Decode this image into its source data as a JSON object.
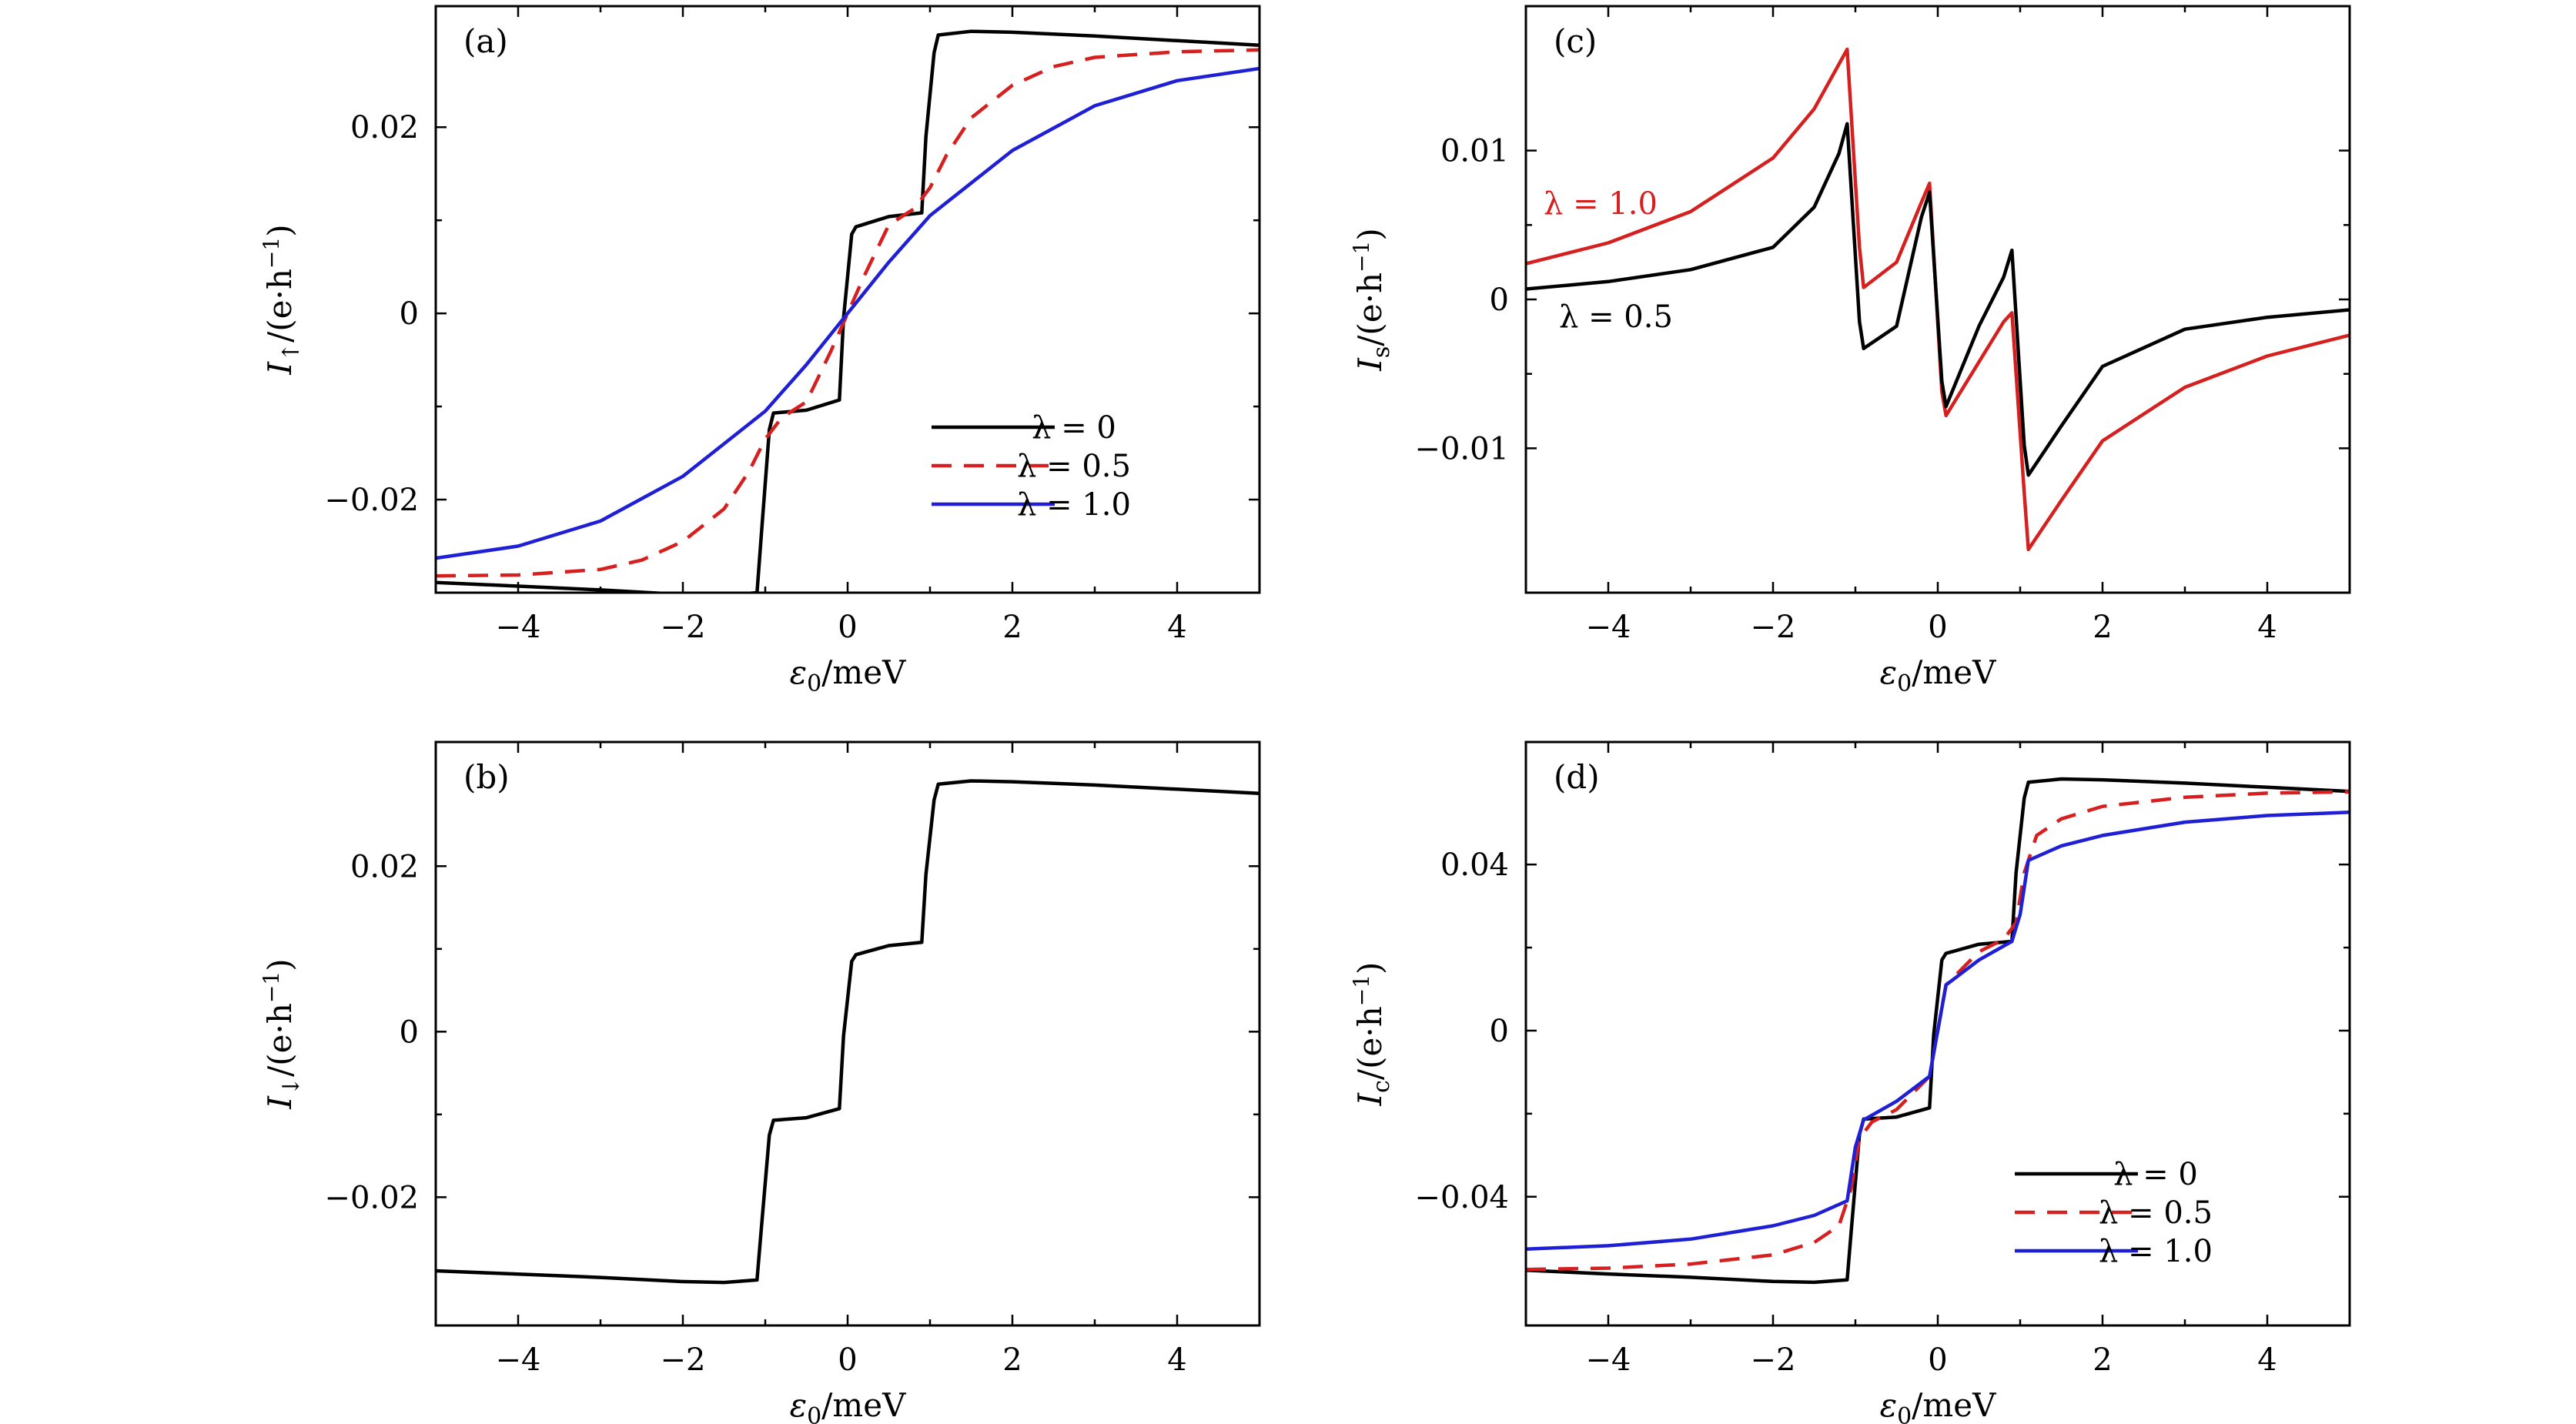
{
  "figure": {
    "panels": [
      {
        "tag": "(a)",
        "ylabel_main": "I",
        "ylabel_sub": "↑",
        "ylabel_unit": "/(e·h",
        "ylabel_exp": "−1",
        "ylabel_close": ")",
        "xlabel_main": "ε",
        "xlabel_sub": "0",
        "xlabel_unit": "/meV",
        "legend_position": "lower-right"
      },
      {
        "tag": "(b)",
        "ylabel_main": "I",
        "ylabel_sub": "↓",
        "ylabel_unit": "/(e·h",
        "ylabel_exp": "−1",
        "ylabel_close": ")",
        "xlabel_main": "ε",
        "xlabel_sub": "0",
        "xlabel_unit": "/meV",
        "legend_position": "none"
      },
      {
        "tag": "(c)",
        "ylabel_main": "I",
        "ylabel_sub": "s",
        "ylabel_unit": "/(e·h",
        "ylabel_exp": "−1",
        "ylabel_close": ")",
        "xlabel_main": "ε",
        "xlabel_sub": "0",
        "xlabel_unit": "/meV",
        "legend_position": "none",
        "annotations": [
          "λ = 1.0",
          "λ = 0.5"
        ]
      },
      {
        "tag": "(d)",
        "ylabel_main": "I",
        "ylabel_sub": "c",
        "ylabel_unit": "/(e·h",
        "ylabel_exp": "−1",
        "ylabel_close": ")",
        "xlabel_main": "ε",
        "xlabel_sub": "0",
        "xlabel_unit": "/meV",
        "legend_position": "lower-right"
      }
    ],
    "colors": {
      "black": "#000000",
      "red": "#d62020",
      "blue": "#1f1fd6"
    }
  },
  "chart_data": [
    {
      "type": "line",
      "panel": "(a)",
      "xlim": [
        -5,
        5
      ],
      "ylim": [
        -0.03,
        0.033
      ],
      "xticks": [
        -4,
        -2,
        0,
        2,
        4
      ],
      "xtick_labels": [
        "−4",
        "−2",
        "0",
        "2",
        "4"
      ],
      "yticks": [
        -0.02,
        0,
        0.02
      ],
      "ytick_labels": [
        "−0.02",
        "0",
        "0.02"
      ],
      "series": [
        {
          "name": "λ = 0",
          "color": "#000000",
          "dash": "solid",
          "x": [
            -5,
            -4,
            -3,
            -2,
            -1.5,
            -1.1,
            -1.05,
            -0.95,
            -0.9,
            -0.5,
            -0.1,
            -0.05,
            0.05,
            0.1,
            0.5,
            0.9,
            0.95,
            1.05,
            1.1,
            1.5,
            2,
            3,
            4,
            5
          ],
          "y": [
            -0.0289,
            -0.0293,
            -0.0297,
            -0.0302,
            -0.0303,
            -0.03,
            -0.024,
            -0.0125,
            -0.0107,
            -0.0104,
            -0.0093,
            -0.0005,
            0.0085,
            0.0093,
            0.0104,
            0.0108,
            0.019,
            0.028,
            0.0299,
            0.0303,
            0.0302,
            0.0298,
            0.0293,
            0.0288
          ]
        },
        {
          "name": "λ = 0.5",
          "color": "#d62020",
          "dash": "dashed",
          "x": [
            -5,
            -4,
            -3,
            -2.5,
            -2,
            -1.5,
            -1.2,
            -1,
            -0.8,
            -0.5,
            -0.2,
            0,
            0.2,
            0.5,
            0.8,
            1,
            1.2,
            1.5,
            2,
            2.5,
            3,
            4,
            5
          ],
          "y": [
            -0.0282,
            -0.0281,
            -0.0275,
            -0.0265,
            -0.0245,
            -0.021,
            -0.017,
            -0.0135,
            -0.0112,
            -0.0095,
            -0.004,
            0,
            0.004,
            0.0095,
            0.0112,
            0.0135,
            0.017,
            0.021,
            0.0245,
            0.0265,
            0.0275,
            0.0281,
            0.0283
          ]
        },
        {
          "name": "λ = 1.0",
          "color": "#1f1fd6",
          "dash": "solid",
          "x": [
            -5,
            -4,
            -3,
            -2,
            -1.5,
            -1,
            -0.5,
            0,
            0.5,
            1,
            1.5,
            2,
            3,
            4,
            5
          ],
          "y": [
            -0.0263,
            -0.025,
            -0.0223,
            -0.0175,
            -0.014,
            -0.0105,
            -0.0055,
            0,
            0.0055,
            0.0105,
            0.014,
            0.0175,
            0.0223,
            0.025,
            0.0263
          ]
        }
      ]
    },
    {
      "type": "line",
      "panel": "(b)",
      "xlim": [
        -5,
        5
      ],
      "ylim": [
        -0.0355,
        0.035
      ],
      "xticks": [
        -4,
        -2,
        0,
        2,
        4
      ],
      "xtick_labels": [
        "−4",
        "−2",
        "0",
        "2",
        "4"
      ],
      "yticks": [
        -0.02,
        0,
        0.02
      ],
      "ytick_labels": [
        "−0.02",
        "0",
        "0.02"
      ],
      "series": [
        {
          "color": "#000000",
          "dash": "solid",
          "x": [
            -5,
            -4,
            -3,
            -2,
            -1.5,
            -1.1,
            -1.05,
            -0.95,
            -0.9,
            -0.5,
            -0.1,
            -0.05,
            0.05,
            0.1,
            0.5,
            0.9,
            0.95,
            1.05,
            1.1,
            1.5,
            2,
            3,
            4,
            5
          ],
          "y": [
            -0.0289,
            -0.0293,
            -0.0297,
            -0.0302,
            -0.0303,
            -0.03,
            -0.024,
            -0.0125,
            -0.0107,
            -0.0104,
            -0.0093,
            -0.0005,
            0.0085,
            0.0093,
            0.0104,
            0.0108,
            0.019,
            0.028,
            0.0299,
            0.0303,
            0.0302,
            0.0298,
            0.0293,
            0.0288
          ]
        }
      ]
    },
    {
      "type": "line",
      "panel": "(c)",
      "xlim": [
        -5,
        5
      ],
      "ylim": [
        -0.0197,
        0.0197
      ],
      "xticks": [
        -4,
        -2,
        0,
        2,
        4
      ],
      "xtick_labels": [
        "−4",
        "−2",
        "0",
        "2",
        "4"
      ],
      "yticks": [
        -0.01,
        0,
        0.01
      ],
      "ytick_labels": [
        "−0.01",
        "0",
        "0.01"
      ],
      "series": [
        {
          "name": "λ = 1.0",
          "color": "#d62020",
          "dash": "solid",
          "x": [
            -5,
            -4,
            -3,
            -2,
            -1.5,
            -1.2,
            -1.1,
            -0.95,
            -0.9,
            -0.5,
            -0.2,
            -0.1,
            0.05,
            0.1,
            0.5,
            0.8,
            0.9,
            1.05,
            1.1,
            1.5,
            2,
            3,
            4,
            5
          ],
          "y": [
            0.0024,
            0.0038,
            0.0059,
            0.0095,
            0.0128,
            0.0158,
            0.0168,
            0.0035,
            0.0008,
            0.0025,
            0.0065,
            0.0078,
            -0.0062,
            -0.0078,
            -0.0042,
            -0.0015,
            -0.0009,
            -0.013,
            -0.0168,
            -0.0135,
            -0.0095,
            -0.0059,
            -0.0038,
            -0.0024
          ]
        },
        {
          "name": "λ = 0.5",
          "color": "#000000",
          "dash": "solid",
          "x": [
            -5,
            -4,
            -3,
            -2,
            -1.5,
            -1.2,
            -1.1,
            -0.95,
            -0.9,
            -0.5,
            -0.2,
            -0.1,
            0.05,
            0.1,
            0.5,
            0.8,
            0.9,
            1.05,
            1.1,
            1.5,
            2,
            3,
            4,
            5
          ],
          "y": [
            0.0007,
            0.0012,
            0.002,
            0.0035,
            0.0062,
            0.0098,
            0.0118,
            -0.0015,
            -0.0033,
            -0.0018,
            0.0055,
            0.0072,
            -0.0055,
            -0.0072,
            -0.0018,
            0.0015,
            0.0033,
            -0.0098,
            -0.0118,
            -0.0085,
            -0.0045,
            -0.002,
            -0.0012,
            -0.0007
          ]
        }
      ]
    },
    {
      "type": "line",
      "panel": "(d)",
      "xlim": [
        -5,
        5
      ],
      "ylim": [
        -0.071,
        0.0695
      ],
      "xticks": [
        -4,
        -2,
        0,
        2,
        4
      ],
      "xtick_labels": [
        "−4",
        "−2",
        "0",
        "2",
        "4"
      ],
      "yticks": [
        -0.04,
        0,
        0.04
      ],
      "ytick_labels": [
        "−0.04",
        "0",
        "0.04"
      ],
      "series": [
        {
          "name": "λ = 0",
          "color": "#000000",
          "dash": "solid",
          "x": [
            -5,
            -4,
            -3,
            -2,
            -1.5,
            -1.1,
            -1.05,
            -0.95,
            -0.9,
            -0.5,
            -0.1,
            -0.05,
            0.05,
            0.1,
            0.5,
            0.9,
            0.95,
            1.05,
            1.1,
            1.5,
            2,
            3,
            4,
            5
          ],
          "y": [
            -0.0577,
            -0.0586,
            -0.0594,
            -0.0604,
            -0.0606,
            -0.06,
            -0.048,
            -0.025,
            -0.0213,
            -0.0208,
            -0.0186,
            -0.001,
            0.017,
            0.0186,
            0.0208,
            0.0215,
            0.038,
            0.056,
            0.0598,
            0.0606,
            0.0604,
            0.0596,
            0.0586,
            0.0576
          ]
        },
        {
          "name": "λ = 0.5",
          "color": "#d62020",
          "dash": "dashed",
          "x": [
            -5,
            -4,
            -3,
            -2,
            -1.5,
            -1.2,
            -1.05,
            -0.95,
            -0.8,
            -0.5,
            -0.1,
            0,
            0.1,
            0.5,
            0.8,
            0.95,
            1.05,
            1.2,
            1.5,
            2,
            3,
            4,
            5
          ],
          "y": [
            -0.0575,
            -0.0572,
            -0.0562,
            -0.054,
            -0.051,
            -0.047,
            -0.038,
            -0.026,
            -0.022,
            -0.019,
            -0.011,
            0,
            0.011,
            0.019,
            0.022,
            0.026,
            0.038,
            0.047,
            0.051,
            0.054,
            0.0562,
            0.0572,
            0.0575
          ]
        },
        {
          "name": "λ = 1.0",
          "color": "#1f1fd6",
          "dash": "solid",
          "x": [
            -5,
            -4,
            -3,
            -2,
            -1.5,
            -1.1,
            -1.0,
            -0.9,
            -0.5,
            -0.1,
            0,
            0.1,
            0.5,
            0.9,
            1.0,
            1.1,
            1.5,
            2,
            3,
            4,
            5
          ],
          "y": [
            -0.0526,
            -0.0518,
            -0.0502,
            -0.047,
            -0.0445,
            -0.041,
            -0.028,
            -0.0215,
            -0.017,
            -0.011,
            0,
            0.011,
            0.017,
            0.0215,
            0.028,
            0.041,
            0.0445,
            0.047,
            0.0502,
            0.0518,
            0.0526
          ]
        }
      ]
    }
  ]
}
